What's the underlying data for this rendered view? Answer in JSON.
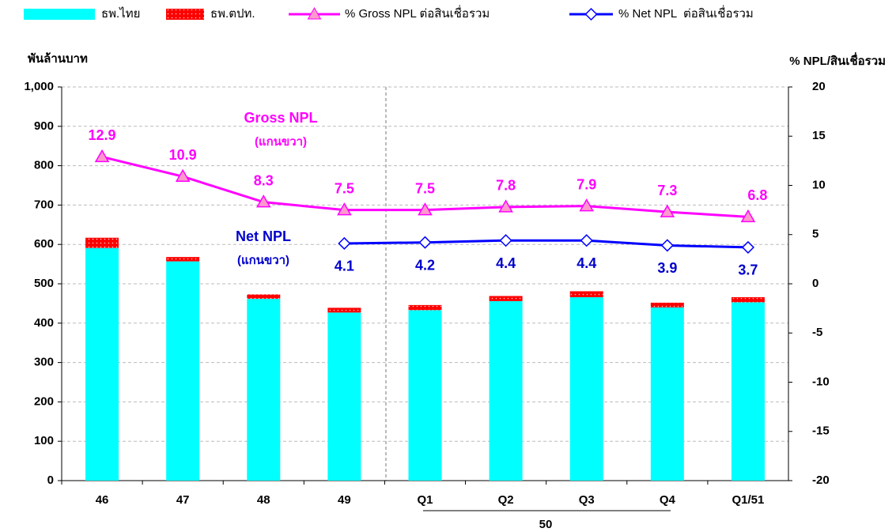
{
  "chart_data": {
    "type": "bar-line",
    "y_label": "พันล้านบาท",
    "y2_label": "% NPL/สินเชื่อรวม",
    "categories": [
      "46",
      "47",
      "48",
      "49",
      "Q1",
      "Q2",
      "Q3",
      "Q4",
      "Q1/51"
    ],
    "group_label": "50",
    "series": [
      {
        "name": "ธพ.ไทย",
        "kind": "bar",
        "color": "#00ffff",
        "values": [
          591,
          557,
          462,
          427,
          433,
          456,
          466,
          440,
          453
        ]
      },
      {
        "name": "ธพ.ตปท.",
        "kind": "bar",
        "color": "#ff0000",
        "values": [
          26,
          11,
          11,
          12,
          13,
          13,
          15,
          12,
          13
        ]
      },
      {
        "name": "% Gross NPL ต่อสินเชื่อรวม",
        "kind": "line",
        "axis": "y2",
        "color": "#ff00ff",
        "marker_color": "#ff99cc",
        "values": [
          12.9,
          10.9,
          8.3,
          7.5,
          7.5,
          7.8,
          7.9,
          7.3,
          6.8
        ]
      },
      {
        "name": "% Net NPL  ต่อสินเชื่อรวม",
        "kind": "line",
        "axis": "y2",
        "color": "#0000ff",
        "marker_color": "#ffffff",
        "values": [
          null,
          null,
          null,
          4.1,
          4.2,
          4.4,
          4.4,
          3.9,
          3.7
        ]
      }
    ],
    "annotations": [
      "Gross NPL",
      "(แกนขวา)",
      "Net NPL",
      "(แกนขวา)"
    ],
    "ylim": [
      0,
      1000
    ],
    "yticks": [
      0,
      100,
      200,
      300,
      400,
      500,
      600,
      700,
      800,
      900,
      {
        "value": 1000,
        "label": "1,000"
      }
    ],
    "y2lim": [
      -20,
      20
    ],
    "y2ticks": [
      -20,
      -15,
      -10,
      -5,
      0,
      5,
      10,
      15,
      20
    ],
    "grid": true
  }
}
